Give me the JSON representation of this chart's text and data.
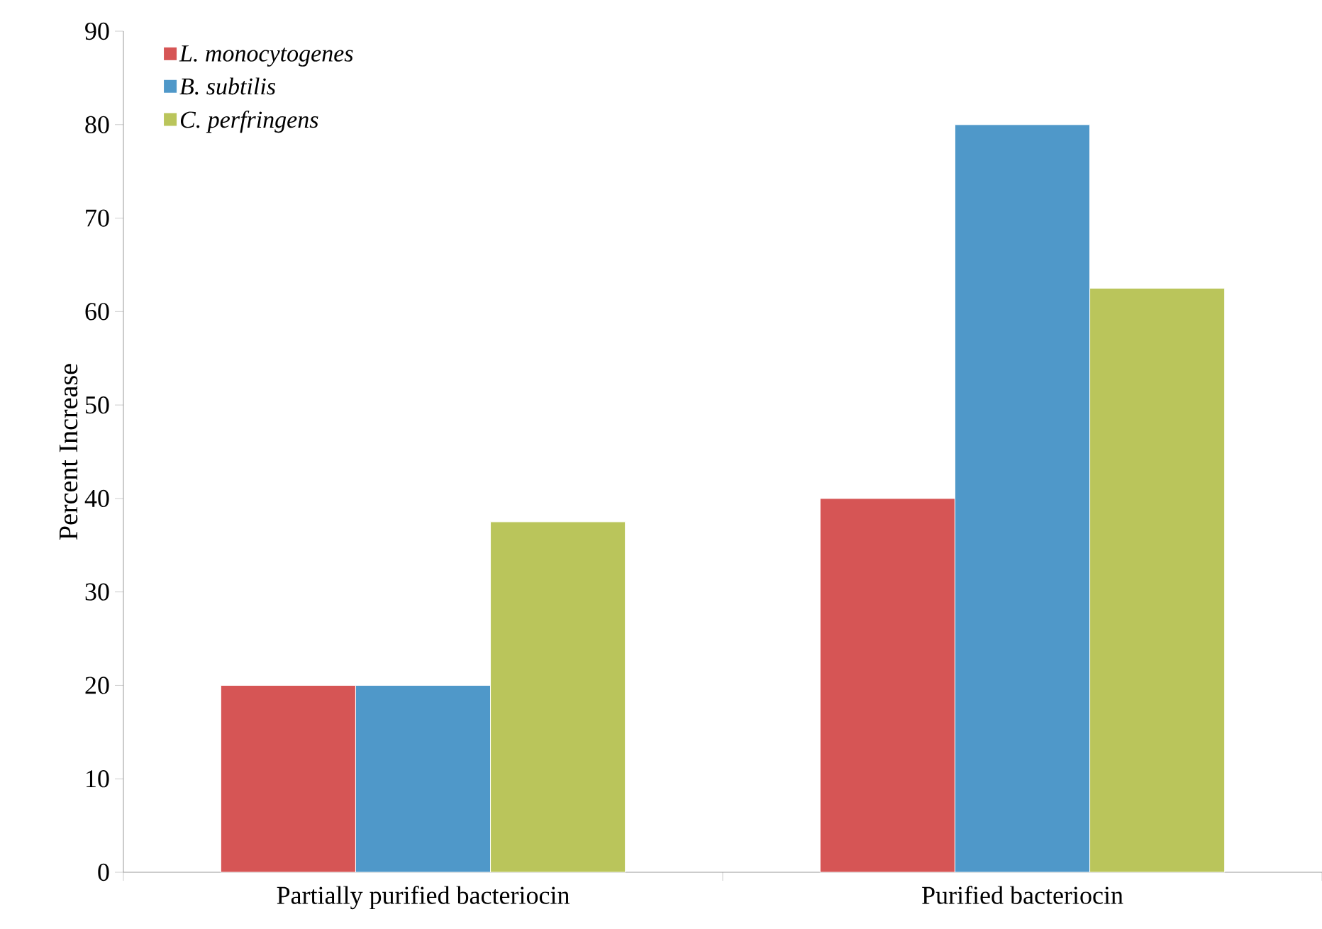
{
  "chart_data": {
    "type": "bar",
    "ylabel": "Percent Increase",
    "categories": [
      "Partially purified bacteriocin",
      "Purified bacteriocin"
    ],
    "series": [
      {
        "name": "L. monocytogenes",
        "color": "#d65555",
        "values": [
          20,
          40
        ]
      },
      {
        "name": "B. subtilis",
        "color": "#4f98c9",
        "values": [
          20,
          80
        ]
      },
      {
        "name": "C. perfringens",
        "color": "#bac55b",
        "values": [
          37.5,
          62.5
        ]
      }
    ],
    "ylim": [
      0,
      90
    ],
    "yticks": [
      0,
      10,
      20,
      30,
      40,
      50,
      60,
      70,
      80,
      90
    ],
    "legend": "top left",
    "grid": false
  }
}
